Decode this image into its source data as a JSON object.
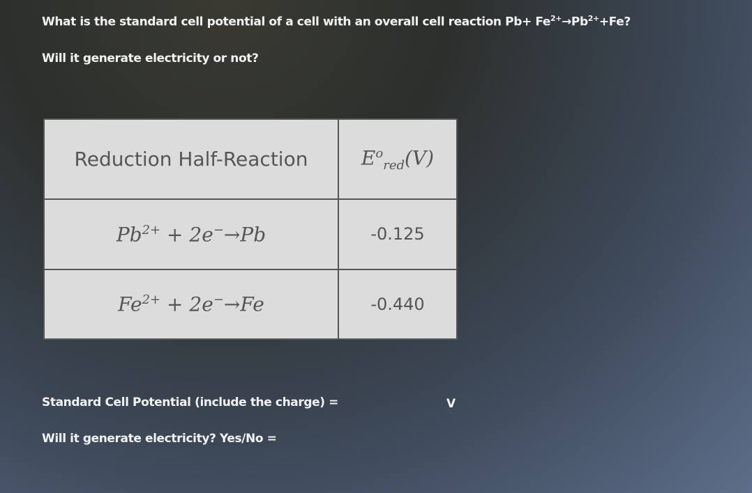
{
  "question": {
    "line1": [
      "What is the standard cell potential of a cell with an overall cell reaction Pb+ Fe",
      "2+",
      "→Pb",
      "2+",
      "+Fe?"
    ],
    "line2": "Will it generate electricity or not?"
  },
  "table": {
    "header": {
      "reaction": "Reduction Half-Reaction",
      "potential": [
        "E",
        "o",
        "red",
        "(V)"
      ]
    },
    "rows": [
      {
        "reaction": [
          "Pb",
          "2+",
          " + 2e",
          "−",
          "→Pb"
        ],
        "potential": "-0.125"
      },
      {
        "reaction": [
          "Fe",
          "2+",
          " + 2e",
          "−",
          "→Fe"
        ],
        "potential": "-0.440"
      }
    ]
  },
  "answers": {
    "potential_prompt": "Standard Cell Potential (include the charge) =",
    "unit": "V",
    "electricity_prompt": "Will it generate electricity? Yes/No ="
  }
}
